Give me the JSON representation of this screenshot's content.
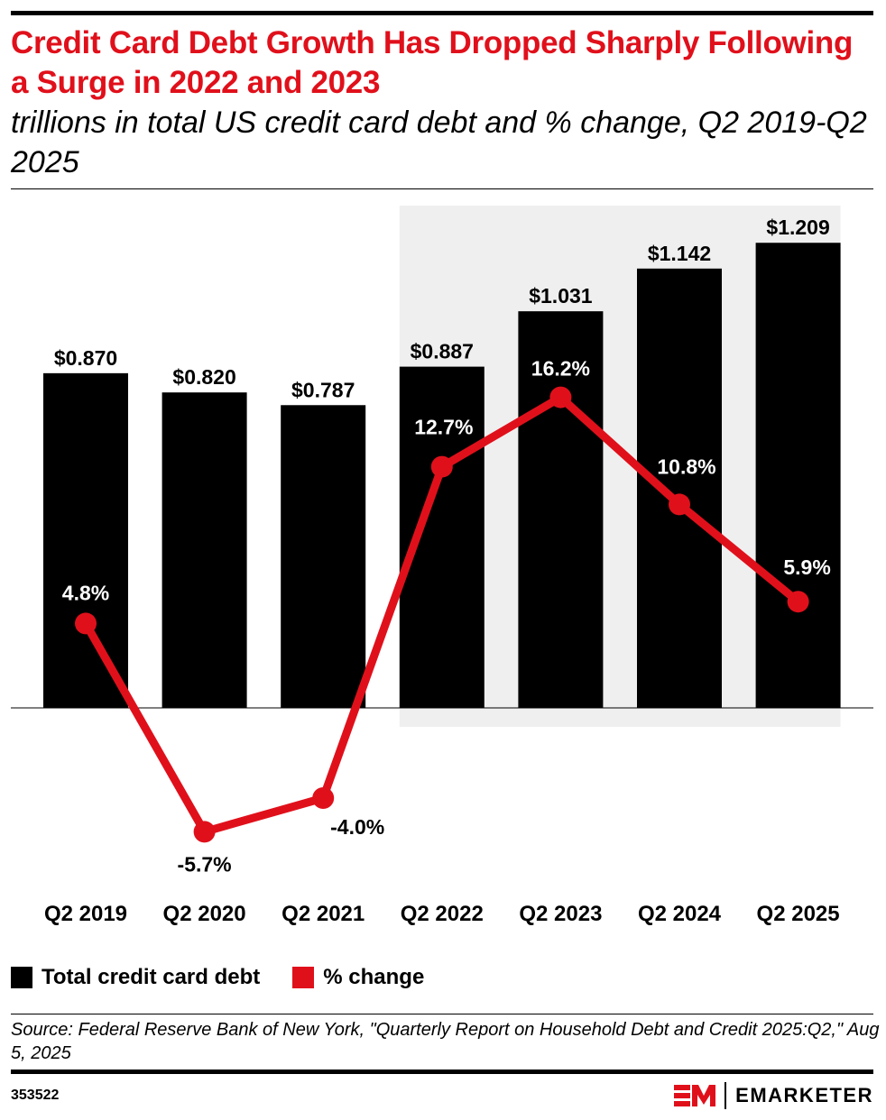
{
  "title": "Credit Card Debt Growth Has Dropped Sharply Following a Surge in 2022 and 2023",
  "subtitle": "trillions in total US credit card debt and % change, Q2 2019-Q2 2025",
  "chart_data": {
    "type": "bar+line",
    "categories": [
      "Q2 2019",
      "Q2 2020",
      "Q2 2021",
      "Q2 2022",
      "Q2 2023",
      "Q2 2024",
      "Q2 2025"
    ],
    "series": [
      {
        "name": "Total credit card debt",
        "type": "bar",
        "color": "#000000",
        "values": [
          0.87,
          0.82,
          0.787,
          0.887,
          1.031,
          1.142,
          1.209
        ],
        "labels": [
          "$0.870",
          "$0.820",
          "$0.787",
          "$0.887",
          "$1.031",
          "$1.142",
          "$1.209"
        ]
      },
      {
        "name": "% change",
        "type": "line",
        "color": "#e0101b",
        "values": [
          4.8,
          -5.7,
          -4.0,
          12.7,
          16.2,
          10.8,
          5.9
        ],
        "labels": [
          "4.8%",
          "-5.7%",
          "-4.0%",
          "12.7%",
          "16.2%",
          "10.8%",
          "5.9%"
        ]
      }
    ],
    "highlight_range": [
      "Q2 2022",
      "Q2 2025"
    ],
    "highlight_color": "#efefef",
    "grid": false,
    "legend_position": "bottom-left"
  },
  "legend": [
    {
      "label": "Total credit card debt",
      "color": "#000000"
    },
    {
      "label": "% change",
      "color": "#e0101b"
    }
  ],
  "source": "Source: Federal Reserve Bank of New York, \"Quarterly Report on Household Debt and Credit 2025:Q2,\" Aug 5, 2025",
  "chart_id": "353522",
  "brand": "EMARKETER",
  "brand_colors": {
    "red": "#e0101b",
    "black": "#000000"
  }
}
